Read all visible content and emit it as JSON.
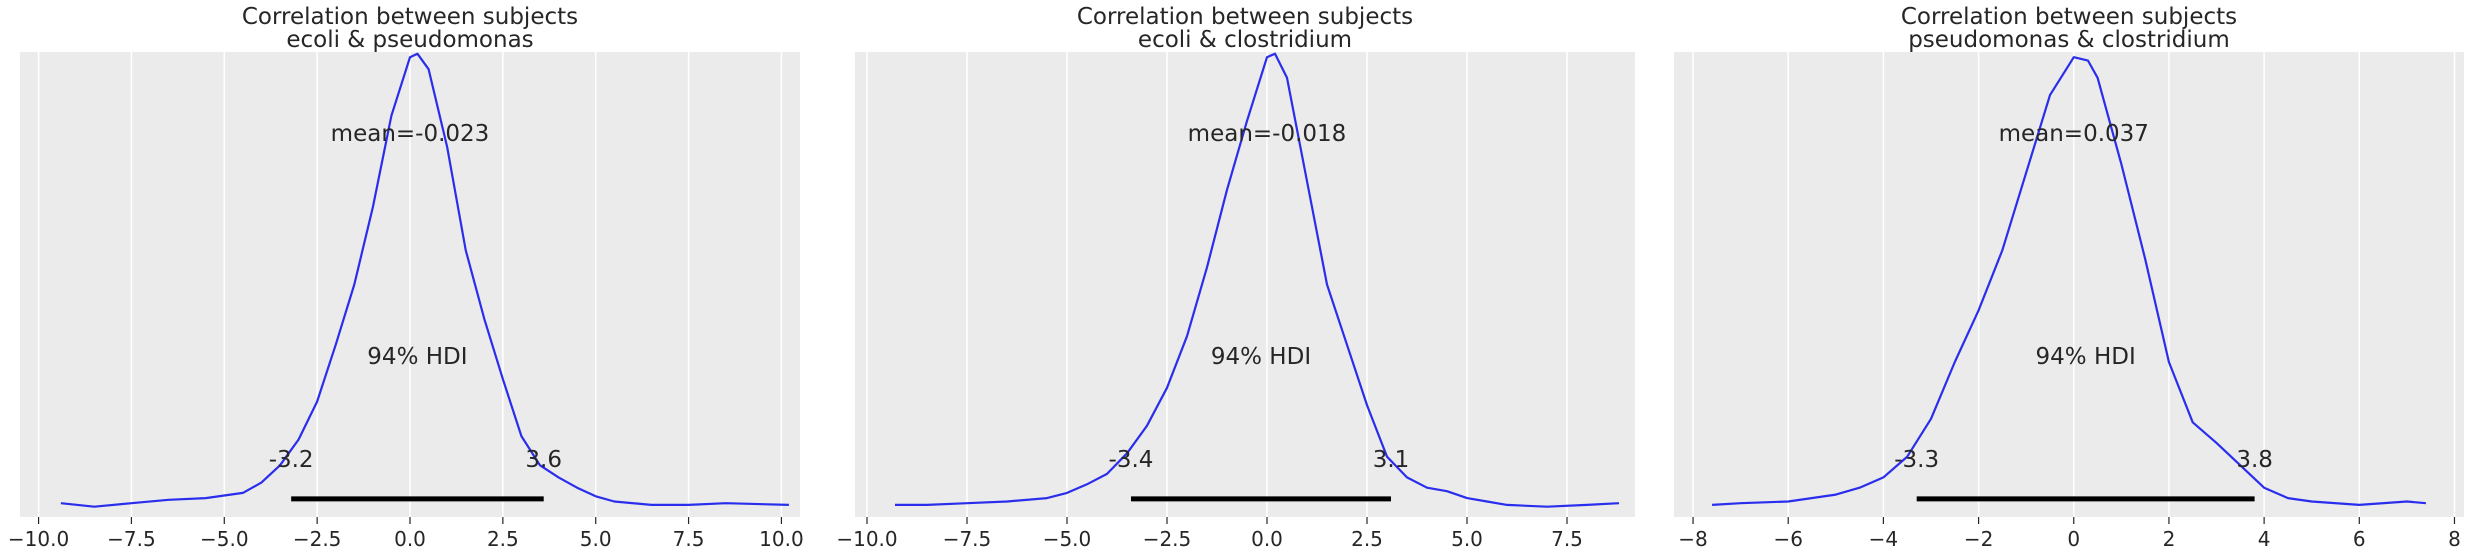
{
  "colors": {
    "background": "#ebebeb",
    "grid": "#ffffff",
    "kde_line": "#2a2eec",
    "hdi_bar": "#000000",
    "text": "#262626"
  },
  "chart_data": [
    {
      "type": "line",
      "title_lines": [
        "Correlation between subjects",
        "ecoli & pseudomonas"
      ],
      "xlim": [
        -10.5,
        10.5
      ],
      "ylim": [
        -0.005,
        0.265
      ],
      "grid": "vertical",
      "x_ticks": [
        -10.0,
        -7.5,
        -5.0,
        -2.5,
        0.0,
        2.5,
        5.0,
        7.5,
        10.0
      ],
      "x_tick_labels": [
        "−10.0",
        "−7.5",
        "−5.0",
        "−2.5",
        "0.0",
        "2.5",
        "5.0",
        "7.5",
        "10.0"
      ],
      "mean_label": "mean=-0.023",
      "hdi_label": "94% HDI",
      "hdi": [
        -3.2,
        3.6
      ],
      "hdi_low_label": "-3.2",
      "hdi_high_label": "3.6",
      "x": [
        -9.4,
        -8.5,
        -7.5,
        -6.5,
        -5.5,
        -4.5,
        -4.0,
        -3.5,
        -3.0,
        -2.5,
        -2.0,
        -1.5,
        -1.0,
        -0.5,
        0.0,
        0.2,
        0.5,
        1.0,
        1.5,
        2.0,
        2.5,
        3.0,
        3.5,
        4.0,
        4.5,
        5.0,
        5.5,
        6.5,
        7.5,
        8.5,
        10.2
      ],
      "y": [
        0.003,
        0.001,
        0.003,
        0.005,
        0.006,
        0.009,
        0.015,
        0.025,
        0.04,
        0.062,
        0.095,
        0.13,
        0.175,
        0.228,
        0.262,
        0.264,
        0.255,
        0.21,
        0.15,
        0.11,
        0.075,
        0.042,
        0.025,
        0.018,
        0.012,
        0.007,
        0.004,
        0.002,
        0.002,
        0.003,
        0.002
      ]
    },
    {
      "type": "line",
      "title_lines": [
        "Correlation between subjects",
        "ecoli & clostridium"
      ],
      "xlim": [
        -10.3,
        9.2
      ],
      "ylim": [
        -0.005,
        0.265
      ],
      "grid": "vertical",
      "x_ticks": [
        -10.0,
        -7.5,
        -5.0,
        -2.5,
        0.0,
        2.5,
        5.0,
        7.5
      ],
      "x_tick_labels": [
        "−10.0",
        "−7.5",
        "−5.0",
        "−2.5",
        "0.0",
        "2.5",
        "5.0",
        "7.5"
      ],
      "mean_label": "mean=-0.018",
      "hdi_label": "94% HDI",
      "hdi": [
        -3.4,
        3.1
      ],
      "hdi_low_label": "-3.4",
      "hdi_high_label": "3.1",
      "x": [
        -9.3,
        -8.5,
        -7.5,
        -6.5,
        -5.5,
        -5.0,
        -4.5,
        -4.0,
        -3.5,
        -3.0,
        -2.5,
        -2.0,
        -1.5,
        -1.0,
        -0.5,
        0.0,
        0.2,
        0.5,
        1.0,
        1.5,
        2.0,
        2.5,
        3.0,
        3.5,
        4.0,
        4.5,
        5.0,
        5.5,
        6.0,
        7.0,
        8.0,
        8.8
      ],
      "y": [
        0.002,
        0.002,
        0.003,
        0.004,
        0.006,
        0.009,
        0.014,
        0.02,
        0.032,
        0.048,
        0.07,
        0.1,
        0.14,
        0.185,
        0.225,
        0.262,
        0.264,
        0.25,
        0.19,
        0.13,
        0.095,
        0.06,
        0.03,
        0.018,
        0.012,
        0.01,
        0.006,
        0.004,
        0.002,
        0.001,
        0.002,
        0.003
      ]
    },
    {
      "type": "line",
      "title_lines": [
        "Correlation between subjects",
        "pseudomonas & clostridium"
      ],
      "xlim": [
        -8.4,
        8.2
      ],
      "ylim": [
        -0.005,
        0.265
      ],
      "grid": "vertical",
      "x_ticks": [
        -8,
        -6,
        -4,
        -2,
        0,
        2,
        4,
        6,
        8
      ],
      "x_tick_labels": [
        "−8",
        "−6",
        "−4",
        "−2",
        "0",
        "2",
        "4",
        "6",
        "8"
      ],
      "mean_label": "mean=0.037",
      "hdi_label": "94% HDI",
      "hdi": [
        -3.3,
        3.8
      ],
      "hdi_low_label": "-3.3",
      "hdi_high_label": "3.8",
      "x": [
        -7.6,
        -7.0,
        -6.0,
        -5.0,
        -4.5,
        -4.0,
        -3.5,
        -3.0,
        -2.5,
        -2.0,
        -1.5,
        -1.0,
        -0.5,
        0.0,
        0.3,
        0.5,
        1.0,
        1.5,
        2.0,
        2.5,
        3.0,
        3.5,
        4.0,
        4.5,
        5.0,
        6.0,
        7.0,
        7.4
      ],
      "y": [
        0.002,
        0.003,
        0.004,
        0.008,
        0.012,
        0.018,
        0.03,
        0.052,
        0.085,
        0.115,
        0.15,
        0.195,
        0.24,
        0.262,
        0.26,
        0.25,
        0.2,
        0.145,
        0.085,
        0.05,
        0.038,
        0.025,
        0.012,
        0.006,
        0.004,
        0.002,
        0.004,
        0.003
      ]
    }
  ]
}
